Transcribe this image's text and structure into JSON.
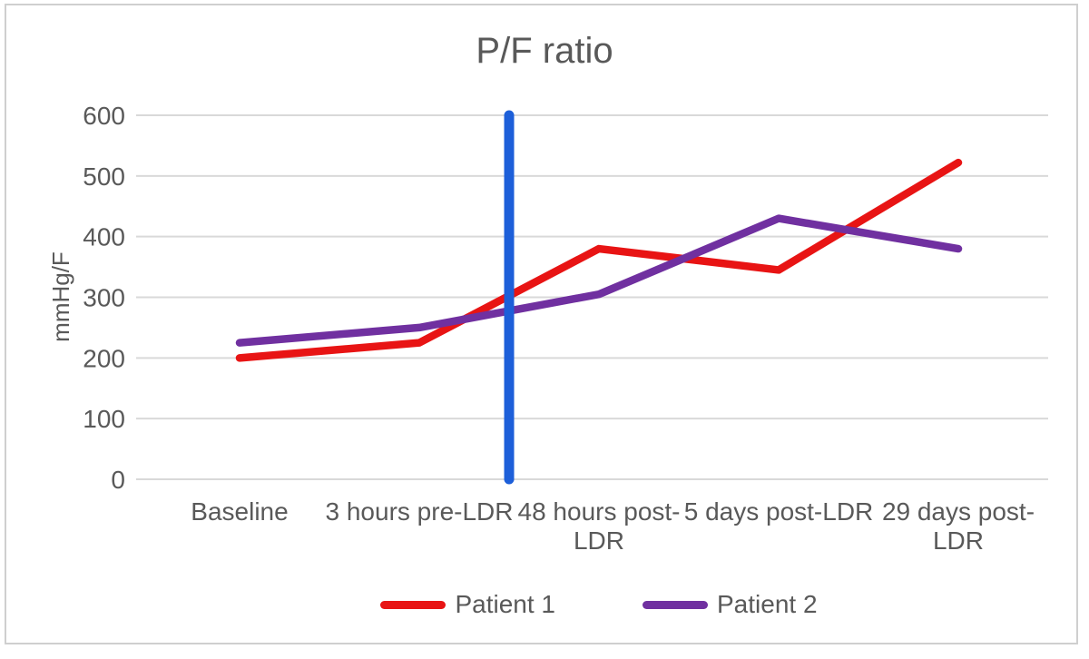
{
  "chart_data": {
    "type": "line",
    "title": "P/F ratio",
    "ylabel": "mmHg/F",
    "ylim": [
      0,
      600
    ],
    "ytick_step": 100,
    "grid": true,
    "categories": [
      "Baseline",
      "3 hours pre-LDR",
      "48 hours post-\nLDR",
      "5 days post-LDR",
      "29 days post-\nLDR"
    ],
    "series": [
      {
        "name": "Patient 1",
        "color": "#e81414",
        "values": [
          200,
          225,
          380,
          345,
          522
        ]
      },
      {
        "name": "Patient 2",
        "color": "#7030a0",
        "values": [
          225,
          250,
          305,
          430,
          380
        ]
      }
    ],
    "annotation": {
      "type": "vertical-line",
      "name": "ldr-marker",
      "color": "#1d5fd9",
      "x_between_categories": [
        1,
        2
      ],
      "y_range": [
        0,
        600
      ]
    },
    "legend": {
      "position": "bottom"
    },
    "colors": {
      "text": "#595959",
      "gridline": "#d9d9d9",
      "border": "#cfcfcf",
      "background": "#ffffff"
    }
  }
}
